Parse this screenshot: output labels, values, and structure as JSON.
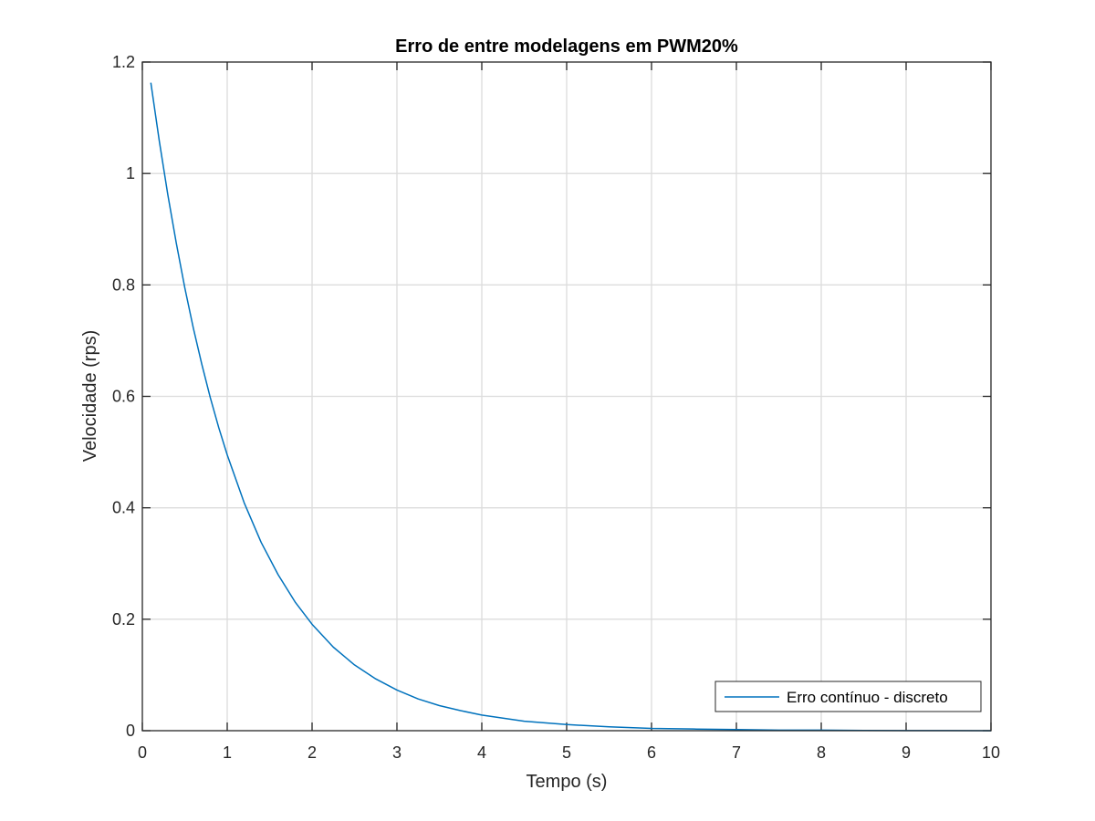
{
  "chart_data": {
    "type": "line",
    "title": "Erro de entre modelagens em PWM20%",
    "xlabel": "Tempo (s)",
    "ylabel": "Velocidade (rps)",
    "xlim": [
      0,
      10
    ],
    "ylim": [
      0,
      1.2
    ],
    "xticks": [
      "0",
      "1",
      "2",
      "3",
      "4",
      "5",
      "6",
      "7",
      "8",
      "9",
      "10"
    ],
    "yticks": [
      "0",
      "0.2",
      "0.4",
      "0.6",
      "0.8",
      "1",
      "1.2"
    ],
    "grid": true,
    "legend_position": "bottom-right",
    "series": [
      {
        "name": "Erro contínuo - discreto",
        "color": "#0072BD",
        "x": [
          0.1,
          0.2,
          0.3,
          0.4,
          0.5,
          0.6,
          0.7,
          0.8,
          0.9,
          1.0,
          1.2,
          1.4,
          1.6,
          1.8,
          2.0,
          2.25,
          2.5,
          2.75,
          3.0,
          3.25,
          3.5,
          3.75,
          4.0,
          4.5,
          5.0,
          5.5,
          6.0,
          6.5,
          7.0,
          7.5,
          8.0,
          8.5,
          9.0,
          9.5,
          10.0
        ],
        "y": [
          1.163,
          1.058,
          0.962,
          0.875,
          0.795,
          0.723,
          0.658,
          0.598,
          0.544,
          0.495,
          0.409,
          0.338,
          0.28,
          0.231,
          0.191,
          0.15,
          0.118,
          0.093,
          0.073,
          0.057,
          0.045,
          0.036,
          0.028,
          0.017,
          0.011,
          0.007,
          0.004,
          0.003,
          0.002,
          0.001,
          0.001,
          0.0005,
          0.0003,
          0.0002,
          0.0001
        ]
      }
    ]
  }
}
